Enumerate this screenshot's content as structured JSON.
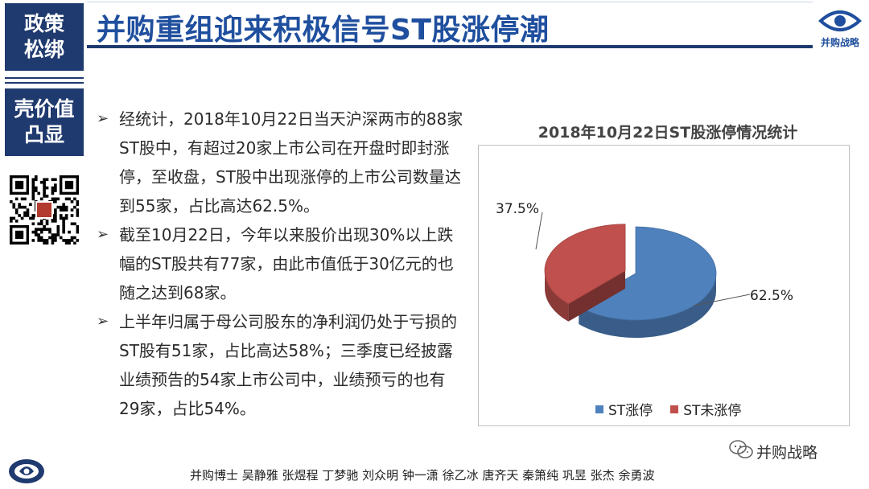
{
  "sidebar": {
    "box1": "政策\n松绑",
    "box2": "壳价值\n凸显"
  },
  "header": {
    "title": "并购重组迎来积极信号ST股涨停潮",
    "logo_text": "并购战略"
  },
  "bullets": [
    "经统计，2018年10月22日当天沪深两市的88家ST股中，有超过20家上市公司在开盘时即封涨停，至收盘，ST股中出现涨停的上市公司数量达到55家，占比高达62.5%。",
    "截至10月22日，今年以来股价出现30%以上跌幅的ST股共有77家，由此市值低于30亿元的也随之达到68家。",
    "上半年归属于母公司股东的净利润仍处于亏损的ST股有51家，占比高达58%；三季度已经披露业绩预告的54家上市公司中，业绩预亏的也有29家，占比54%。"
  ],
  "bullet_marker": "➢",
  "chart_data": {
    "type": "pie",
    "title": "2018年10月22日ST股涨停情况统计",
    "categories": [
      "ST涨停",
      "ST未涨停"
    ],
    "values": [
      62.5,
      37.5
    ],
    "data_labels": [
      "62.5%",
      "37.5%"
    ],
    "colors": [
      "#4f81bd",
      "#c0504d"
    ],
    "legend_position": "bottom",
    "three_d": true
  },
  "watermark": "并购战略",
  "footer": {
    "names": "并购博士 吴静雅 张煜程 丁梦驰 刘众明 钟一潇 徐乙冰 唐齐天 秦箫纯 巩昱 张杰 余勇波"
  },
  "colors": {
    "navy": "#1f3a6e",
    "title_blue": "#1f4f9e"
  }
}
